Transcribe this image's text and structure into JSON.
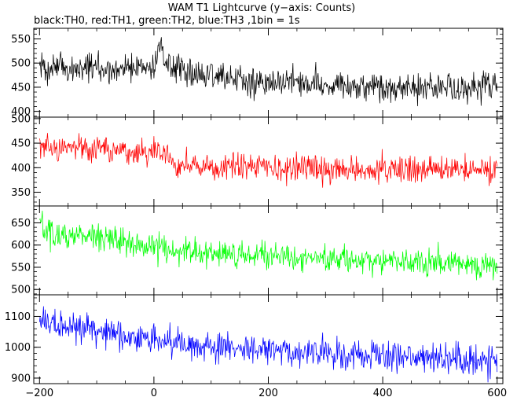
{
  "title": "WAM T1 Lightcurve (y−axis: Counts)",
  "subtitle": "black:TH0, red:TH1, green:TH2, blue:TH3 ,1bin = 1s",
  "chart_data": [
    {
      "type": "line",
      "series": [
        {
          "name": "TH0",
          "color": "#000000"
        }
      ],
      "xlim": [
        -210,
        610
      ],
      "ylim": [
        388,
        572
      ],
      "yticks": [
        400,
        450,
        500,
        550
      ],
      "xticks": [
        -200,
        0,
        200,
        400,
        600
      ],
      "profile": [
        [
          -200,
          490
        ],
        [
          -100,
          488
        ],
        [
          0,
          490
        ],
        [
          10,
          540
        ],
        [
          20,
          505
        ],
        [
          60,
          475
        ],
        [
          200,
          462
        ],
        [
          400,
          450
        ],
        [
          500,
          445
        ],
        [
          600,
          455
        ]
      ],
      "noise": 28
    },
    {
      "type": "line",
      "series": [
        {
          "name": "TH1",
          "color": "#ff0000"
        }
      ],
      "xlim": [
        -210,
        610
      ],
      "ylim": [
        322,
        503
      ],
      "yticks": [
        350,
        400,
        450,
        500
      ],
      "xticks": [
        -200,
        0,
        200,
        400,
        600
      ],
      "profile": [
        [
          -200,
          445
        ],
        [
          -100,
          435
        ],
        [
          0,
          430
        ],
        [
          20,
          425
        ],
        [
          40,
          405
        ],
        [
          200,
          400
        ],
        [
          400,
          395
        ],
        [
          600,
          398
        ]
      ],
      "noise": 24
    },
    {
      "type": "line",
      "series": [
        {
          "name": "TH2",
          "color": "#00ff00"
        }
      ],
      "xlim": [
        -210,
        610
      ],
      "ylim": [
        488,
        688
      ],
      "yticks": [
        500,
        550,
        600,
        650
      ],
      "xticks": [
        -200,
        0,
        200,
        400,
        600
      ],
      "profile": [
        [
          -200,
          650
        ],
        [
          -180,
          625
        ],
        [
          -100,
          615
        ],
        [
          0,
          595
        ],
        [
          100,
          580
        ],
        [
          200,
          575
        ],
        [
          400,
          565
        ],
        [
          600,
          555
        ]
      ],
      "noise": 28
    },
    {
      "type": "line",
      "series": [
        {
          "name": "TH3",
          "color": "#0000ff"
        }
      ],
      "xlim": [
        -210,
        610
      ],
      "ylim": [
        882,
        1170
      ],
      "yticks": [
        900,
        1000,
        1100
      ],
      "xticks": [
        -200,
        0,
        200,
        400,
        600
      ],
      "profile": [
        [
          -200,
          1085
        ],
        [
          -100,
          1055
        ],
        [
          0,
          1025
        ],
        [
          100,
          1005
        ],
        [
          200,
          990
        ],
        [
          400,
          975
        ],
        [
          600,
          955
        ]
      ],
      "noise": 45
    }
  ],
  "xtick_labels": [
    "−200",
    "0",
    "200",
    "400",
    "600"
  ],
  "colors": {
    "th0": "#000000",
    "th1": "#ff0000",
    "th2": "#00ff00",
    "th3": "#0000ff"
  }
}
